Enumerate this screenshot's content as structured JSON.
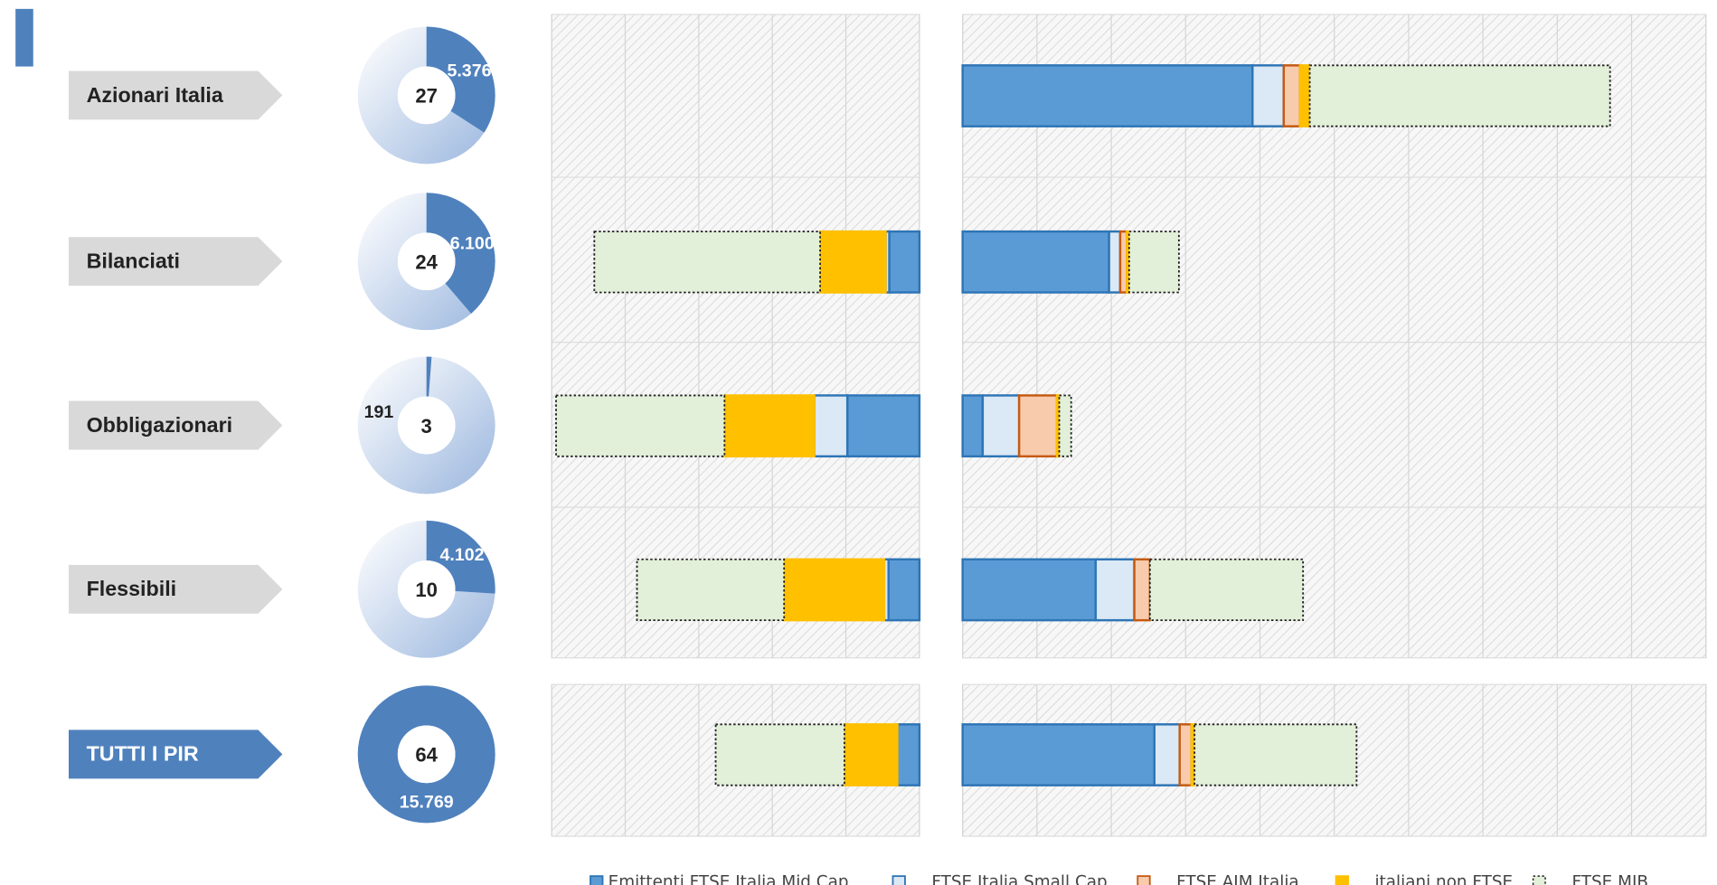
{
  "chart_data": [
    {
      "type": "bar",
      "categories": [
        "Azionari Italia",
        "Bilanciati",
        "Obbligazionari",
        "Flessibili",
        "TUTTI I PIR"
      ],
      "xlim": [
        0,
        5
      ],
      "xticks": [
        0,
        1,
        2,
        3,
        4,
        5
      ],
      "reversed": true,
      "series": [
        {
          "values": [
            0,
            0.41,
            0.98,
            0.42,
            0.3
          ]
        },
        {
          "values": [
            0,
            0.05,
            0.45,
            0.06,
            0
          ]
        },
        {
          "values": [
            0,
            0,
            0,
            0,
            0
          ]
        },
        {
          "values": [
            0,
            0.89,
            1.22,
            1.36,
            0.72
          ]
        },
        {
          "values": [
            0,
            3.07,
            2.29,
            2.0,
            1.75
          ]
        }
      ]
    },
    {
      "type": "bar",
      "xlim": [
        0,
        10
      ],
      "xticks": [
        0,
        1,
        2,
        3,
        4,
        5,
        6,
        7,
        8,
        9,
        10
      ],
      "series": [
        {
          "name": "Emittenti FTSE Italia Mid Cap",
          "color": "#5b9bd5",
          "values": [
            3.9,
            1.97,
            0.27,
            1.79,
            2.58
          ]
        },
        {
          "name": "... FTSE Italia Small Cap",
          "color": "#dbe8f5",
          "values": [
            0.42,
            0.15,
            0.49,
            0.52,
            0.34
          ]
        },
        {
          "name": "... FTSE AIM Italia",
          "color": "#f8cbad",
          "values": [
            0.22,
            0.09,
            0.51,
            0.21,
            0.16
          ]
        },
        {
          "name": "... italiani non FTSE",
          "color": "#ffc000",
          "values": [
            0.13,
            0.03,
            0.03,
            0,
            0.04
          ]
        },
        {
          "name": "... FTSE MIB",
          "color": "#e2efd9",
          "values": [
            4.04,
            0.67,
            0.16,
            2.06,
            2.18
          ]
        }
      ]
    },
    {
      "type": "donut",
      "counts": [
        27,
        24,
        3,
        10,
        64
      ],
      "values": [
        5376,
        6100,
        191,
        4102,
        15769
      ],
      "value_labels": [
        "5.376",
        "6.100",
        "191",
        "4.102",
        "15.769"
      ],
      "color": "#4f81bd"
    }
  ]
}
